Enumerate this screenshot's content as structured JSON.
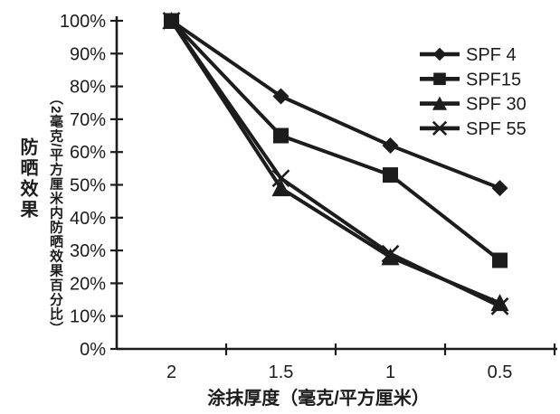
{
  "chart_data": {
    "type": "line",
    "xlabel": "涂抹厚度（毫克/平方厘米）",
    "ylabel": "防晒效果",
    "ylabel_sub": "（2毫克/平方厘米内防晒效果百分比）",
    "categories": [
      "2",
      "1.5",
      "1",
      "0.5"
    ],
    "series": [
      {
        "name": "SPF 4",
        "marker": "diamond",
        "values": [
          100,
          77,
          62,
          49
        ]
      },
      {
        "name": "SPF15",
        "marker": "square",
        "values": [
          100,
          65,
          53,
          27
        ]
      },
      {
        "name": "SPF 30",
        "marker": "triangle",
        "values": [
          100,
          49,
          28,
          14
        ]
      },
      {
        "name": "SPF 55",
        "marker": "x",
        "values": [
          100,
          52,
          29,
          13
        ]
      }
    ],
    "ylim": [
      0,
      100
    ],
    "ytick_step": 10,
    "ytick_labels": [
      "0%",
      "10%",
      "20%",
      "30%",
      "40%",
      "50%",
      "60%",
      "70%",
      "80%",
      "90%",
      "100%"
    ],
    "legend_position": "top-right",
    "grid": false,
    "line_color": "#1c1c1c",
    "background": "#ffffff"
  }
}
